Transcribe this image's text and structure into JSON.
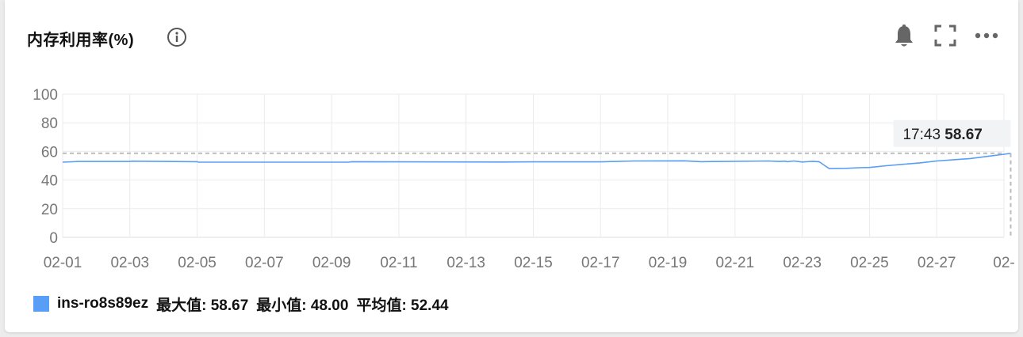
{
  "panel": {
    "title": "内存利用率(%)",
    "icons": {
      "info": "info-icon",
      "bell": "bell-icon",
      "fullscreen": "fullscreen-icon",
      "more": "more-icon"
    }
  },
  "chart_data": {
    "type": "line",
    "title": "内存利用率(%)",
    "xlabel": "",
    "ylabel": "",
    "ylim": [
      0,
      100
    ],
    "y_ticks": [
      "0",
      "20",
      "40",
      "60",
      "80",
      "100"
    ],
    "x_ticks": [
      "02-01",
      "02-03",
      "02-05",
      "02-07",
      "02-09",
      "02-11",
      "02-13",
      "02-15",
      "02-17",
      "02-19",
      "02-21",
      "02-23",
      "02-25",
      "02-27",
      "02-"
    ],
    "grid": true,
    "color": "#589DF6",
    "series": [
      {
        "name": "ins-ro8s89ez",
        "x": [
          0,
          0.5,
          2.0,
          2.05,
          4.0,
          4.05,
          8.5,
          8.6,
          13.0,
          14.0,
          16.0,
          17.0,
          18.5,
          19.0,
          21.0,
          21.3,
          21.5,
          21.55,
          21.75,
          22.0,
          22.3,
          22.5,
          22.8,
          23.3,
          23.7,
          24.0,
          24.5,
          25.0,
          25.5,
          26.0,
          26.5,
          27.0,
          27.5,
          28.0,
          28.2
        ],
        "y": [
          52.5,
          53.0,
          53.0,
          53.2,
          52.8,
          52.5,
          52.5,
          52.8,
          52.6,
          52.7,
          52.7,
          53.3,
          53.4,
          52.8,
          53.3,
          53.0,
          53.2,
          52.8,
          53.3,
          52.6,
          53.1,
          52.8,
          48.0,
          48.2,
          48.6,
          48.8,
          50.0,
          51.0,
          52.0,
          53.3,
          54.2,
          55.0,
          56.5,
          58.0,
          58.67
        ]
      }
    ],
    "tooltip": {
      "time": "17:43",
      "value": "58.67"
    },
    "crosshair": {
      "x": 28.2,
      "y": 58.67
    }
  },
  "legend": {
    "name": "ins-ro8s89ez",
    "max": "最大值: 58.67",
    "min": "最小值: 48.00",
    "avg": "平均值: 52.44"
  }
}
